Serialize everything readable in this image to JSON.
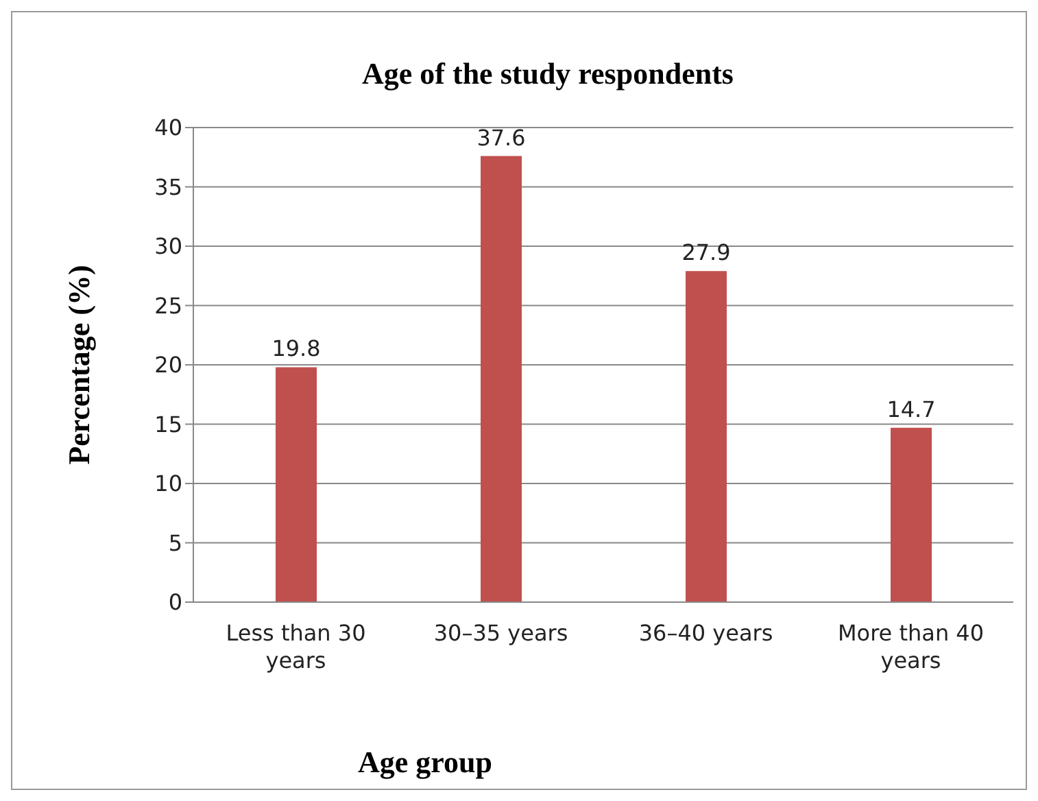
{
  "chart_data": {
    "type": "bar",
    "title": "Age of the study respondents",
    "xlabel": "Age group",
    "ylabel": "Percentage (%)",
    "categories": [
      "Less than 30 years",
      "30–35 years",
      "36–40 years",
      "More than 40 years"
    ],
    "values": [
      19.8,
      37.6,
      27.9,
      14.7
    ],
    "color": "#c0504d",
    "ylim": [
      0,
      40
    ],
    "yticks": [
      0,
      5,
      10,
      15,
      20,
      25,
      30,
      35,
      40
    ],
    "grid": "y",
    "data_labels": true
  }
}
